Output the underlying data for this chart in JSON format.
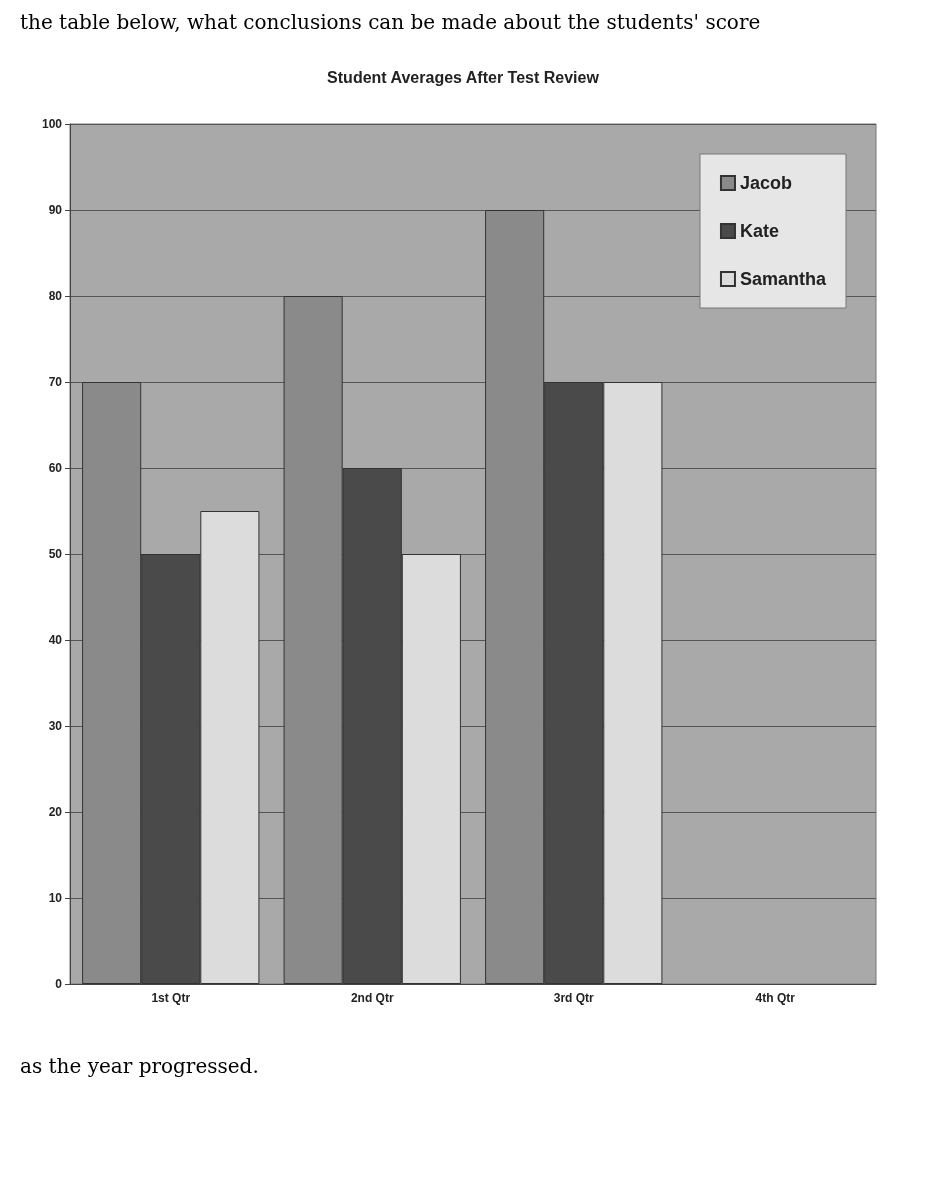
{
  "chart_data": {
    "type": "bar",
    "title": "Student Averages After Test Review",
    "categories": [
      "1st Qtr",
      "2nd Qtr",
      "3rd Qtr",
      "4th Qtr"
    ],
    "series": [
      {
        "name": "Jacob",
        "color": "#8a8a8a",
        "values": [
          70,
          80,
          90,
          null
        ]
      },
      {
        "name": "Kate",
        "color": "#4a4a4a",
        "values": [
          50,
          60,
          70,
          null
        ]
      },
      {
        "name": "Samantha",
        "color": "#dcdcdc",
        "values": [
          55,
          50,
          70,
          null
        ]
      }
    ],
    "ylim": [
      0,
      100
    ],
    "yticks": [
      0,
      10,
      20,
      30,
      40,
      50,
      60,
      70,
      80,
      90,
      100
    ],
    "grid": "y",
    "legend": "top right",
    "annotations": [
      "the table below, what conclusions can be made about the students' score",
      "as the year progressed."
    ]
  }
}
